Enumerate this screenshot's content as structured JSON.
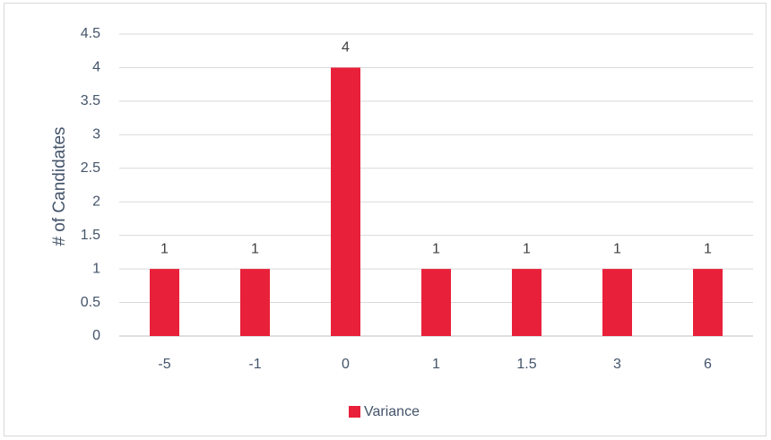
{
  "chart_data": {
    "type": "bar",
    "categories": [
      "-5",
      "-1",
      "0",
      "1",
      "1.5",
      "3",
      "6"
    ],
    "series": [
      {
        "name": "Variance",
        "values": [
          1,
          1,
          4,
          1,
          1,
          1,
          1
        ],
        "color": "#e8203a"
      }
    ],
    "title": "",
    "xlabel": "",
    "ylabel": "# of Candidates",
    "ylim": [
      0,
      4.5
    ],
    "yticks": [
      "0",
      "0.5",
      "1",
      "1.5",
      "2",
      "2.5",
      "3",
      "3.5",
      "4",
      "4.5"
    ],
    "data_labels": [
      "1",
      "1",
      "4",
      "1",
      "1",
      "1",
      "1"
    ],
    "grid": true,
    "legend_position": "bottom"
  }
}
